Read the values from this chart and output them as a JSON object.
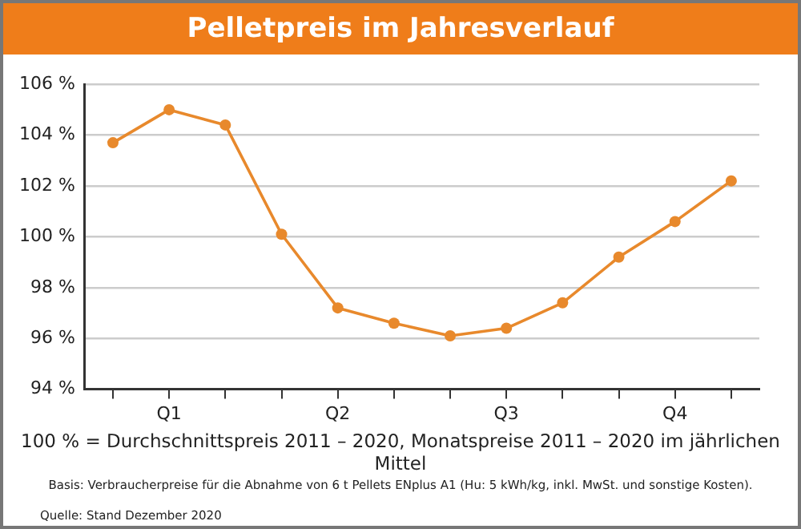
{
  "chart_data": {
    "type": "line",
    "title": "Pelletpreis im Jahresverlauf",
    "categories": [
      null,
      "Q1",
      null,
      null,
      "Q2",
      null,
      null,
      "Q3",
      null,
      null,
      "Q4",
      null
    ],
    "series": [
      {
        "color": "#e8892c",
        "values": [
          103.7,
          105.0,
          104.4,
          100.1,
          97.2,
          96.6,
          96.1,
          96.4,
          97.4,
          99.2,
          100.6,
          102.2
        ]
      }
    ],
    "ylim": [
      94,
      106
    ],
    "yticks": [
      {
        "value": 94,
        "label": "94 %"
      },
      {
        "value": 96,
        "label": "96 %"
      },
      {
        "value": 98,
        "label": "98 %"
      },
      {
        "value": 100,
        "label": "100 %"
      },
      {
        "value": 102,
        "label": "102 %"
      },
      {
        "value": 104,
        "label": "104 %"
      },
      {
        "value": 106,
        "label": "106 %"
      }
    ],
    "grid": "y",
    "legend": false,
    "marker": "circle",
    "line_style": "solid",
    "annotations": [
      "100 % = Durchschnittspreis 2011 – 2020, Monatspreise 2011 – 2020 im jährlichen Mittel",
      "Basis: Verbraucherpreise für die Abnahme von 6 t Pellets ENplus A1 (Hu: 5 kWh/kg, inkl. MwSt. und sonstige Kosten).",
      "Quelle: Stand Dezember 2020"
    ]
  }
}
